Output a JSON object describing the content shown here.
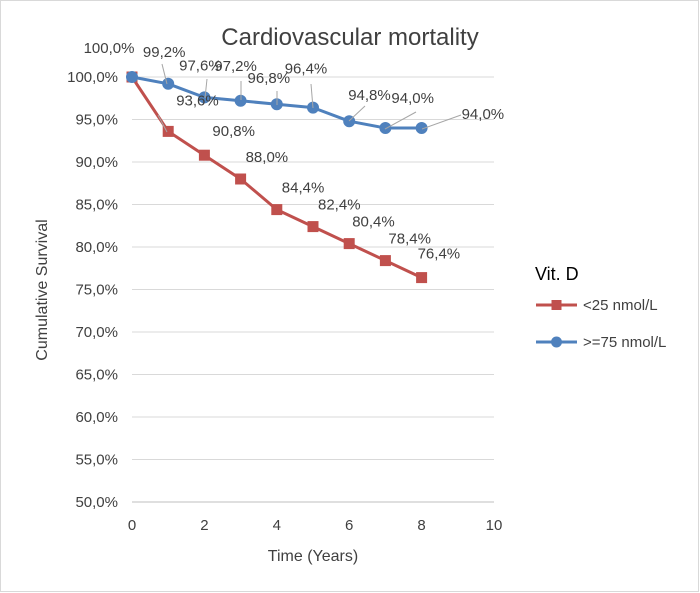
{
  "chart_data": {
    "type": "line",
    "title": "Cardiovascular mortality",
    "xlabel": "Time (Years)",
    "ylabel": "Cumulative Survival",
    "xlim": [
      0,
      10
    ],
    "ylim": [
      50,
      100
    ],
    "x_ticks": [
      0,
      2,
      4,
      6,
      8,
      10
    ],
    "x_tick_labels": [
      "0",
      "2",
      "4",
      "6",
      "8",
      "10"
    ],
    "y_ticks": [
      50,
      55,
      60,
      65,
      70,
      75,
      80,
      85,
      90,
      95,
      100
    ],
    "y_tick_labels": [
      "50,0%",
      "55,0%",
      "60,0%",
      "65,0%",
      "70,0%",
      "75,0%",
      "80,0%",
      "85,0%",
      "90,0%",
      "95,0%",
      "100,0%"
    ],
    "grid": "horizontal",
    "legend": {
      "title": "Vit. D",
      "position": "right"
    },
    "series": [
      {
        "name": "<25 nmol/L",
        "color": "#c0504d",
        "marker": "square",
        "x": [
          0,
          1,
          2,
          3,
          4,
          5,
          6,
          7,
          8
        ],
        "values": [
          100.0,
          93.6,
          90.8,
          88.0,
          84.4,
          82.4,
          80.4,
          78.4,
          76.4
        ],
        "labels": [
          "100,0%",
          "93,6%",
          "90,8%",
          "88,0%",
          "84,4%",
          "82,4%",
          "80,4%",
          "78,4%",
          "76,4%"
        ]
      },
      {
        "name": ">=75 nmol/L",
        "color": "#4f81bd",
        "marker": "circle",
        "x": [
          0,
          1,
          2,
          3,
          4,
          5,
          6,
          7,
          8
        ],
        "values": [
          100.0,
          99.2,
          97.6,
          97.2,
          96.8,
          96.4,
          94.8,
          94.0,
          94.0
        ],
        "labels": [
          "100,0%",
          "99,2%",
          "97,6%",
          "97,2%",
          "96,8%",
          "96,4%",
          "94,8%",
          "94,0%",
          "94,0%"
        ]
      }
    ]
  }
}
